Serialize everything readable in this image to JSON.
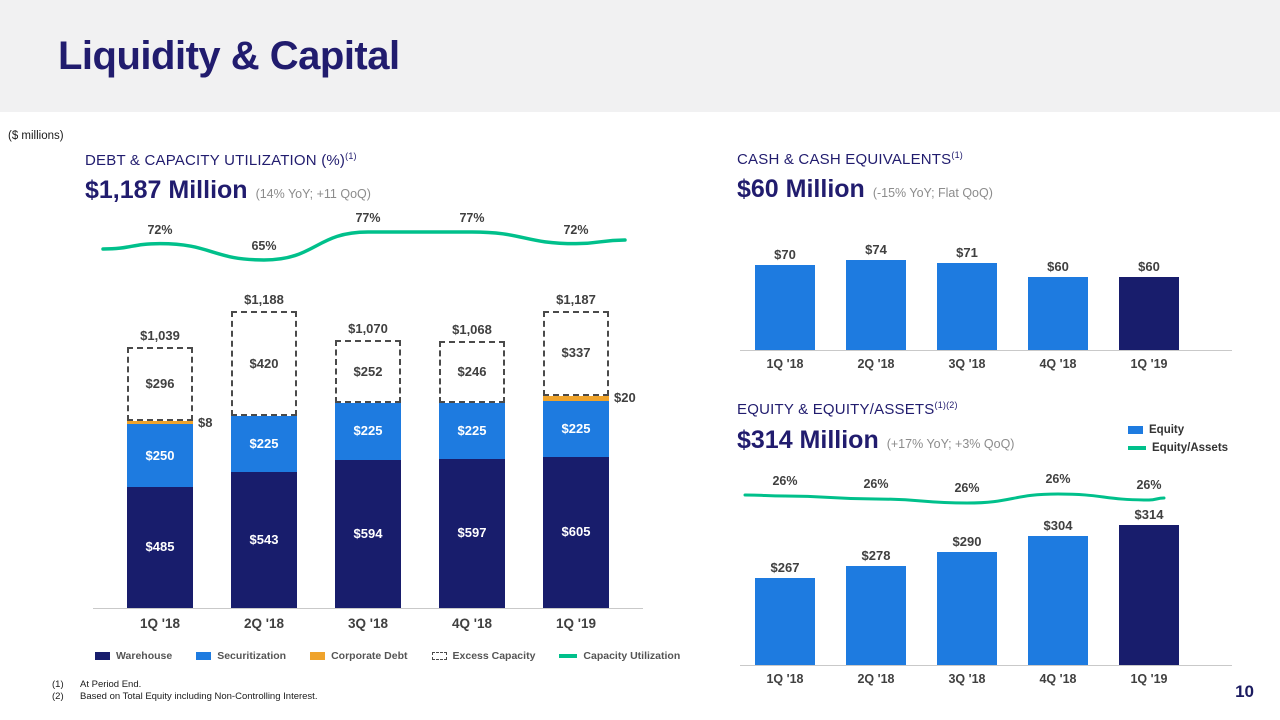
{
  "slide": {
    "title": "Liquidity & Capital",
    "units_label": "($ millions)",
    "page_number": "10",
    "footnote1_num": "(1)",
    "footnote1_text": "At Period End.",
    "footnote2_num": "(2)",
    "footnote2_text": "Based on Total Equity including Non-Controlling Interest."
  },
  "colors": {
    "navy": "#181d6c",
    "blue": "#1e7be0",
    "orange": "#efa32b",
    "green": "#00c08b",
    "heading": "#211c6e",
    "label_gray": "#404040",
    "note_gray": "#8c8c8c"
  },
  "chart_data": [
    {
      "id": "debt-capacity-utilization",
      "type": "bar",
      "subtype": "stacked-bar-with-line",
      "title": "DEBT & CAPACITY UTILIZATION (%)",
      "title_sup": "(1)",
      "headline": "$1,187 Million",
      "headline_note": "(14% YoY; +11 QoQ)",
      "categories": [
        "1Q '18",
        "2Q '18",
        "3Q '18",
        "4Q '18",
        "1Q '19"
      ],
      "series": [
        {
          "name": "Warehouse",
          "values": [
            485,
            543,
            594,
            597,
            605
          ],
          "labels": [
            "$485",
            "$543",
            "$594",
            "$597",
            "$605"
          ]
        },
        {
          "name": "Securitization",
          "values": [
            250,
            225,
            225,
            225,
            225
          ],
          "labels": [
            "$250",
            "$225",
            "$225",
            "$225",
            "$225"
          ]
        },
        {
          "name": "Corporate Debt",
          "values": [
            8,
            0,
            0,
            0,
            20
          ],
          "labels": [
            "$8",
            "",
            "",
            "",
            "$20"
          ]
        },
        {
          "name": "Excess Capacity",
          "values": [
            296,
            420,
            252,
            246,
            337
          ],
          "labels": [
            "$296",
            "$420",
            "$252",
            "$246",
            "$337"
          ]
        }
      ],
      "totals": [
        "$1,039",
        "$1,188",
        "$1,070",
        "$1,068",
        "$1,187"
      ],
      "line": {
        "name": "Capacity Utilization",
        "values": [
          72,
          65,
          77,
          77,
          72
        ],
        "labels": [
          "72%",
          "65%",
          "77%",
          "77%",
          "72%"
        ]
      },
      "legend": [
        {
          "label": "Warehouse",
          "swatch": "navy"
        },
        {
          "label": "Securitization",
          "swatch": "blue"
        },
        {
          "label": "Corporate Debt",
          "swatch": "orange"
        },
        {
          "label": "Excess Capacity",
          "swatch": "dashed"
        },
        {
          "label": "Capacity Utilization",
          "swatch": "green-line"
        }
      ],
      "ylim": [
        0,
        1250
      ],
      "line_ylim": [
        60,
        80
      ]
    },
    {
      "id": "cash-and-cash-equivalents",
      "type": "bar",
      "title": "CASH & CASH EQUIVALENTS",
      "title_sup": "(1)",
      "headline": "$60 Million",
      "headline_note": "(-15% YoY; Flat QoQ)",
      "categories": [
        "1Q '18",
        "2Q '18",
        "3Q '18",
        "4Q '18",
        "1Q '19"
      ],
      "values": [
        70,
        74,
        71,
        60,
        60
      ],
      "labels": [
        "$70",
        "$74",
        "$71",
        "$60",
        "$60"
      ],
      "highlight_last": true,
      "ylim": [
        0,
        80
      ]
    },
    {
      "id": "equity-and-equity-assets",
      "type": "bar",
      "subtype": "bar-with-line",
      "title": "EQUITY & EQUITY/ASSETS",
      "title_sup": "(1)(2)",
      "headline": "$314 Million",
      "headline_note": "(+17% YoY; +3% QoQ)",
      "categories": [
        "1Q '18",
        "2Q '18",
        "3Q '18",
        "4Q '18",
        "1Q '19"
      ],
      "values": [
        267,
        278,
        290,
        304,
        314
      ],
      "labels": [
        "$267",
        "$278",
        "$290",
        "$304",
        "$314"
      ],
      "line": {
        "name": "Equity/Assets",
        "values": [
          26,
          26,
          26,
          26,
          26
        ],
        "labels": [
          "26%",
          "26%",
          "26%",
          "26%",
          "26%"
        ]
      },
      "legend": [
        {
          "label": "Equity",
          "swatch": "blue"
        },
        {
          "label": "Equity/Assets",
          "swatch": "green-line"
        }
      ],
      "highlight_last": true,
      "ylim": [
        190,
        330
      ]
    }
  ]
}
